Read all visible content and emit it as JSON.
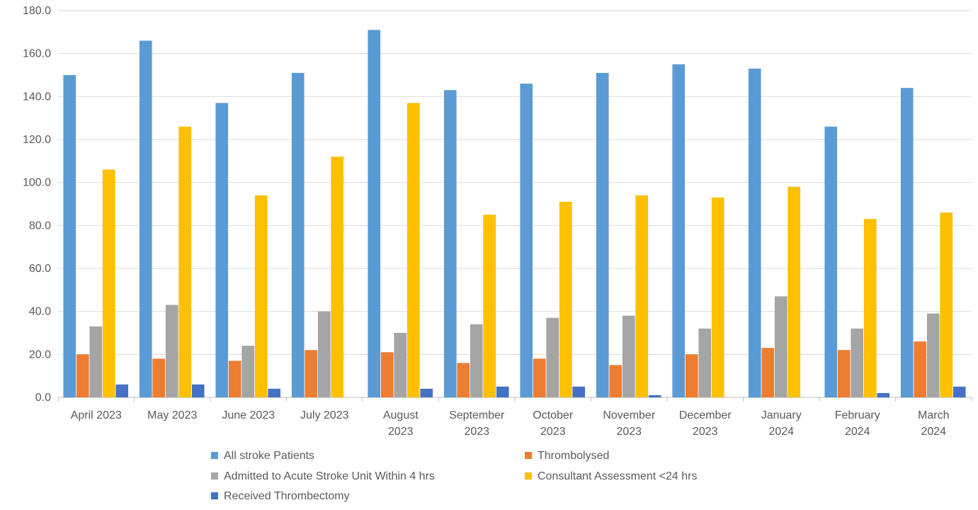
{
  "chart_data": {
    "type": "bar",
    "categories": [
      [
        "April 2023"
      ],
      [
        "May 2023"
      ],
      [
        "June 2023"
      ],
      [
        "July 2023"
      ],
      [
        "August",
        "2023"
      ],
      [
        "September",
        "2023"
      ],
      [
        "October",
        "2023"
      ],
      [
        "November",
        "2023"
      ],
      [
        "December",
        "2023"
      ],
      [
        "January",
        "2024"
      ],
      [
        "February",
        "2024"
      ],
      [
        "March",
        "2024"
      ]
    ],
    "series": [
      {
        "name": "All stroke Patients",
        "color": "#5b9bd5",
        "values": [
          150,
          166,
          137,
          151,
          171,
          143,
          146,
          151,
          155,
          153,
          126,
          144
        ]
      },
      {
        "name": "Thrombolysed",
        "color": "#ed7d31",
        "values": [
          20,
          18,
          17,
          22,
          21,
          16,
          18,
          15,
          20,
          23,
          22,
          26
        ]
      },
      {
        "name": "Admitted to Acute Stroke Unit Within 4 hrs",
        "color": "#a5a5a5",
        "values": [
          33,
          43,
          24,
          40,
          30,
          34,
          37,
          38,
          32,
          47,
          32,
          39
        ]
      },
      {
        "name": "Consultant Assessment <24 hrs",
        "color": "#ffc000",
        "values": [
          106,
          126,
          94,
          112,
          137,
          85,
          91,
          94,
          93,
          98,
          83,
          86
        ]
      },
      {
        "name": "Received Thrombectomy",
        "color": "#4472c4",
        "values": [
          6,
          6,
          4,
          0,
          4,
          5,
          5,
          1,
          0,
          0,
          2,
          5
        ]
      }
    ],
    "yticks": [
      "0.0",
      "20.0",
      "40.0",
      "60.0",
      "80.0",
      "100.0",
      "120.0",
      "140.0",
      "160.0",
      "180.0"
    ],
    "ylim": [
      0,
      180
    ],
    "grid": true,
    "legend_position": "bottom"
  }
}
